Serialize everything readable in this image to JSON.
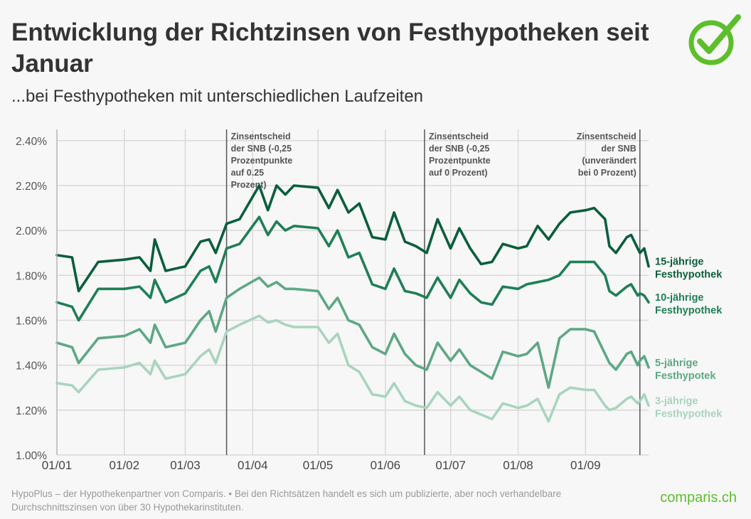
{
  "title": "Entwicklung der Richtzinsen von Festhypotheken seit Januar",
  "subtitle": "...bei Festhypotheken mit unterschiedlichen Laufzeiten",
  "footer": "HypoPlus – der Hypothekenpartner von Comparis. • Bei den Richtsätzen handelt es sich um publizierte, aber noch verhandelbare Durchschnittszinsen von über 30 Hypothekarinstituten.",
  "brand": "comparis.ch",
  "logo_icon": "check-circle-icon",
  "colors": {
    "s15": "#0b5e3c",
    "s10": "#1f7f56",
    "s5": "#5da884",
    "s3": "#a9d4bd",
    "brand": "#5cbf2a",
    "grid": "#d9d9d9",
    "event": "#555555"
  },
  "chart_data": {
    "type": "line",
    "x_ticks": [
      "01/01",
      "01/02",
      "01/03",
      "01/04",
      "01/05",
      "01/06",
      "01/07",
      "01/08",
      "01/09"
    ],
    "x_range": [
      "01/01",
      "30/09"
    ],
    "y_ticks": [
      "1.00%",
      "1.20%",
      "1.40%",
      "1.60%",
      "1.80%",
      "2.00%",
      "2.20%",
      "2.40%"
    ],
    "ylim": [
      1.0,
      2.45
    ],
    "grid": true,
    "events": [
      {
        "date": "20/03",
        "lines": [
          "Zinsentscheid",
          "der SNB (-0,25",
          "Prozentpunkte",
          "auf 0.25",
          "Prozent)"
        ]
      },
      {
        "date": "19/06",
        "lines": [
          "Zinsentscheid",
          "der SNB (-0,25",
          "Prozentpunkte",
          "auf 0 Prozent)"
        ]
      },
      {
        "date": "26/09",
        "lines": [
          "Zinsentscheid",
          "der SNB",
          "(unverändert",
          "bei 0 Prozent)"
        ]
      }
    ],
    "series": [
      {
        "name": "15-jährige Festhypothek",
        "label_lines": [
          "15-jährige",
          "Festhypothek"
        ],
        "color": "#0b5e3c",
        "points": [
          [
            "01/01",
            1.89
          ],
          [
            "08/01",
            1.88
          ],
          [
            "11/01",
            1.73
          ],
          [
            "20/01",
            1.86
          ],
          [
            "01/02",
            1.87
          ],
          [
            "08/02",
            1.88
          ],
          [
            "13/02",
            1.82
          ],
          [
            "15/02",
            1.96
          ],
          [
            "20/02",
            1.82
          ],
          [
            "01/03",
            1.84
          ],
          [
            "08/03",
            1.95
          ],
          [
            "12/03",
            1.96
          ],
          [
            "15/03",
            1.9
          ],
          [
            "20/03",
            2.03
          ],
          [
            "26/03",
            2.05
          ],
          [
            "04/04",
            2.2
          ],
          [
            "08/04",
            2.09
          ],
          [
            "12/04",
            2.2
          ],
          [
            "16/04",
            2.16
          ],
          [
            "20/04",
            2.2
          ],
          [
            "01/05",
            2.19
          ],
          [
            "06/05",
            2.1
          ],
          [
            "10/05",
            2.18
          ],
          [
            "15/05",
            2.08
          ],
          [
            "20/05",
            2.12
          ],
          [
            "26/05",
            1.97
          ],
          [
            "01/06",
            1.96
          ],
          [
            "05/06",
            2.08
          ],
          [
            "10/06",
            1.95
          ],
          [
            "15/06",
            1.93
          ],
          [
            "20/06",
            1.9
          ],
          [
            "25/06",
            2.05
          ],
          [
            "01/07",
            1.92
          ],
          [
            "05/07",
            2.01
          ],
          [
            "10/07",
            1.92
          ],
          [
            "15/07",
            1.85
          ],
          [
            "20/07",
            1.86
          ],
          [
            "25/07",
            1.94
          ],
          [
            "01/08",
            1.92
          ],
          [
            "05/08",
            1.93
          ],
          [
            "10/08",
            2.02
          ],
          [
            "15/08",
            1.96
          ],
          [
            "20/08",
            2.03
          ],
          [
            "25/08",
            2.08
          ],
          [
            "01/09",
            2.09
          ],
          [
            "05/09",
            2.1
          ],
          [
            "10/09",
            2.05
          ],
          [
            "12/09",
            1.93
          ],
          [
            "15/09",
            1.9
          ],
          [
            "20/09",
            1.97
          ],
          [
            "22/09",
            1.98
          ],
          [
            "25/09",
            1.92
          ],
          [
            "26/09",
            1.9
          ],
          [
            "28/09",
            1.92
          ],
          [
            "30/09",
            1.84
          ]
        ]
      },
      {
        "name": "10-jährige Festhypothek",
        "label_lines": [
          "10-jährige",
          "Festhypothek"
        ],
        "color": "#1f7f56",
        "points": [
          [
            "01/01",
            1.68
          ],
          [
            "08/01",
            1.66
          ],
          [
            "11/01",
            1.6
          ],
          [
            "20/01",
            1.74
          ],
          [
            "01/02",
            1.74
          ],
          [
            "08/02",
            1.75
          ],
          [
            "13/02",
            1.7
          ],
          [
            "15/02",
            1.78
          ],
          [
            "20/02",
            1.68
          ],
          [
            "01/03",
            1.72
          ],
          [
            "08/03",
            1.82
          ],
          [
            "12/03",
            1.84
          ],
          [
            "15/03",
            1.77
          ],
          [
            "20/03",
            1.92
          ],
          [
            "26/03",
            1.94
          ],
          [
            "04/04",
            2.06
          ],
          [
            "08/04",
            1.98
          ],
          [
            "12/04",
            2.04
          ],
          [
            "16/04",
            2.0
          ],
          [
            "20/04",
            2.02
          ],
          [
            "01/05",
            2.01
          ],
          [
            "06/05",
            1.93
          ],
          [
            "10/05",
            2.0
          ],
          [
            "15/05",
            1.88
          ],
          [
            "20/05",
            1.9
          ],
          [
            "26/05",
            1.76
          ],
          [
            "01/06",
            1.74
          ],
          [
            "05/06",
            1.83
          ],
          [
            "10/06",
            1.73
          ],
          [
            "15/06",
            1.72
          ],
          [
            "20/06",
            1.7
          ],
          [
            "25/06",
            1.79
          ],
          [
            "01/07",
            1.7
          ],
          [
            "05/07",
            1.78
          ],
          [
            "10/07",
            1.72
          ],
          [
            "15/07",
            1.68
          ],
          [
            "20/07",
            1.67
          ],
          [
            "25/07",
            1.75
          ],
          [
            "01/08",
            1.74
          ],
          [
            "05/08",
            1.76
          ],
          [
            "10/08",
            1.77
          ],
          [
            "15/08",
            1.78
          ],
          [
            "20/08",
            1.8
          ],
          [
            "25/08",
            1.86
          ],
          [
            "01/09",
            1.86
          ],
          [
            "05/09",
            1.86
          ],
          [
            "10/09",
            1.8
          ],
          [
            "12/09",
            1.73
          ],
          [
            "15/09",
            1.71
          ],
          [
            "20/09",
            1.75
          ],
          [
            "22/09",
            1.76
          ],
          [
            "25/09",
            1.71
          ],
          [
            "26/09",
            1.72
          ],
          [
            "28/09",
            1.71
          ],
          [
            "30/09",
            1.68
          ]
        ]
      },
      {
        "name": "5-jährige Festhypotek",
        "label_lines": [
          "5-jährige",
          "Festhypotek"
        ],
        "color": "#5da884",
        "points": [
          [
            "01/01",
            1.5
          ],
          [
            "08/01",
            1.48
          ],
          [
            "11/01",
            1.41
          ],
          [
            "20/01",
            1.52
          ],
          [
            "01/02",
            1.53
          ],
          [
            "08/02",
            1.56
          ],
          [
            "13/02",
            1.5
          ],
          [
            "15/02",
            1.58
          ],
          [
            "20/02",
            1.48
          ],
          [
            "01/03",
            1.5
          ],
          [
            "08/03",
            1.6
          ],
          [
            "12/03",
            1.64
          ],
          [
            "15/03",
            1.55
          ],
          [
            "20/03",
            1.7
          ],
          [
            "26/03",
            1.74
          ],
          [
            "04/04",
            1.79
          ],
          [
            "08/04",
            1.75
          ],
          [
            "12/04",
            1.77
          ],
          [
            "16/04",
            1.74
          ],
          [
            "20/04",
            1.74
          ],
          [
            "01/05",
            1.73
          ],
          [
            "06/05",
            1.65
          ],
          [
            "10/05",
            1.7
          ],
          [
            "15/05",
            1.6
          ],
          [
            "20/05",
            1.58
          ],
          [
            "26/05",
            1.48
          ],
          [
            "01/06",
            1.45
          ],
          [
            "05/06",
            1.54
          ],
          [
            "10/06",
            1.45
          ],
          [
            "15/06",
            1.4
          ],
          [
            "20/06",
            1.38
          ],
          [
            "25/06",
            1.5
          ],
          [
            "01/07",
            1.42
          ],
          [
            "05/07",
            1.47
          ],
          [
            "10/07",
            1.4
          ],
          [
            "15/07",
            1.37
          ],
          [
            "20/07",
            1.34
          ],
          [
            "25/07",
            1.46
          ],
          [
            "01/08",
            1.44
          ],
          [
            "05/08",
            1.45
          ],
          [
            "10/08",
            1.5
          ],
          [
            "15/08",
            1.3
          ],
          [
            "20/08",
            1.52
          ],
          [
            "25/08",
            1.56
          ],
          [
            "01/09",
            1.56
          ],
          [
            "05/09",
            1.55
          ],
          [
            "10/09",
            1.45
          ],
          [
            "12/09",
            1.41
          ],
          [
            "15/09",
            1.38
          ],
          [
            "20/09",
            1.45
          ],
          [
            "22/09",
            1.46
          ],
          [
            "25/09",
            1.4
          ],
          [
            "26/09",
            1.42
          ],
          [
            "28/09",
            1.44
          ],
          [
            "30/09",
            1.39
          ]
        ]
      },
      {
        "name": "3-jährige Festhypothek",
        "label_lines": [
          "3-jährige",
          "Festhypothek"
        ],
        "color": "#a9d4bd",
        "points": [
          [
            "01/01",
            1.32
          ],
          [
            "08/01",
            1.31
          ],
          [
            "11/01",
            1.28
          ],
          [
            "20/01",
            1.38
          ],
          [
            "01/02",
            1.39
          ],
          [
            "08/02",
            1.41
          ],
          [
            "13/02",
            1.36
          ],
          [
            "15/02",
            1.42
          ],
          [
            "20/02",
            1.34
          ],
          [
            "01/03",
            1.36
          ],
          [
            "08/03",
            1.44
          ],
          [
            "12/03",
            1.47
          ],
          [
            "15/03",
            1.41
          ],
          [
            "20/03",
            1.55
          ],
          [
            "26/03",
            1.58
          ],
          [
            "04/04",
            1.62
          ],
          [
            "08/04",
            1.59
          ],
          [
            "12/04",
            1.6
          ],
          [
            "16/04",
            1.58
          ],
          [
            "20/04",
            1.57
          ],
          [
            "01/05",
            1.57
          ],
          [
            "06/05",
            1.5
          ],
          [
            "10/05",
            1.54
          ],
          [
            "15/05",
            1.4
          ],
          [
            "20/05",
            1.37
          ],
          [
            "26/05",
            1.27
          ],
          [
            "01/06",
            1.26
          ],
          [
            "05/06",
            1.32
          ],
          [
            "10/06",
            1.24
          ],
          [
            "15/06",
            1.22
          ],
          [
            "20/06",
            1.21
          ],
          [
            "25/06",
            1.28
          ],
          [
            "01/07",
            1.22
          ],
          [
            "05/07",
            1.26
          ],
          [
            "10/07",
            1.2
          ],
          [
            "15/07",
            1.18
          ],
          [
            "20/07",
            1.16
          ],
          [
            "25/07",
            1.23
          ],
          [
            "01/08",
            1.21
          ],
          [
            "05/08",
            1.22
          ],
          [
            "10/08",
            1.25
          ],
          [
            "15/08",
            1.15
          ],
          [
            "20/08",
            1.27
          ],
          [
            "25/08",
            1.3
          ],
          [
            "01/09",
            1.29
          ],
          [
            "05/09",
            1.29
          ],
          [
            "10/09",
            1.22
          ],
          [
            "12/09",
            1.2
          ],
          [
            "15/09",
            1.21
          ],
          [
            "20/09",
            1.25
          ],
          [
            "22/09",
            1.26
          ],
          [
            "25/09",
            1.23
          ],
          [
            "26/09",
            1.24
          ],
          [
            "28/09",
            1.27
          ],
          [
            "30/09",
            1.22
          ]
        ]
      }
    ]
  }
}
